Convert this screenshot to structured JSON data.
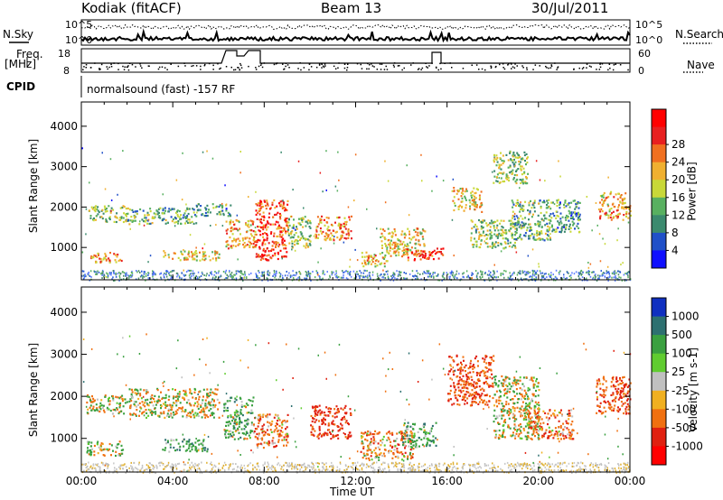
{
  "header": {
    "station": "Kodiak (fitACF)",
    "beam": "Beam 13",
    "date": "30/Jul/2011"
  },
  "summary": {
    "nsky_label": "N.Sky",
    "nsearch_label": "N.Search",
    "freq_label_top": "Freq.",
    "freq_label_unit": "[MHz]",
    "nave_label": "Nave",
    "cpid_label": "CPID",
    "cpid_text": "normalsound (fast) -157 RF",
    "noise_ticks": [
      "10^5",
      "10^0"
    ],
    "freq_ticks": [
      "18",
      "8"
    ],
    "nave_ticks": [
      "60",
      "0"
    ]
  },
  "chart_data": [
    {
      "type": "heatmap",
      "panel": "power",
      "ylabel": "Slant Range [km]",
      "xlabel": "Time UT",
      "x_ticks": [
        "00:00",
        "04:00",
        "08:00",
        "12:00",
        "16:00",
        "20:00",
        "00:00"
      ],
      "y_ticks": [
        1000,
        2000,
        3000,
        4000
      ],
      "ylim": [
        200,
        4600
      ],
      "xlim_hours": [
        0,
        24
      ],
      "colorbar": {
        "label": "Power [dB]",
        "ticks": [
          4,
          8,
          12,
          16,
          20,
          24,
          28
        ],
        "range": [
          0,
          32
        ],
        "colors": [
          "#1010ff",
          "#2050c8",
          "#3b8a6e",
          "#58b060",
          "#c8d838",
          "#f0b030",
          "#f07020",
          "#e82020",
          "#ff0000"
        ]
      },
      "echo_regions": [
        {
          "t": [
            0.3,
            2.0
          ],
          "r": [
            1650,
            2050
          ],
          "level": 14
        },
        {
          "t": [
            0.3,
            1.8
          ],
          "r": [
            650,
            900
          ],
          "level": 22
        },
        {
          "t": [
            2.0,
            5.0
          ],
          "r": [
            1600,
            2000
          ],
          "level": 12
        },
        {
          "t": [
            3.5,
            6.0
          ],
          "r": [
            700,
            950
          ],
          "level": 18
        },
        {
          "t": [
            5.0,
            6.5
          ],
          "r": [
            1800,
            2100
          ],
          "level": 10
        },
        {
          "t": [
            6.3,
            7.6
          ],
          "r": [
            1000,
            1700
          ],
          "level": 20
        },
        {
          "t": [
            7.6,
            9.0
          ],
          "r": [
            700,
            2200
          ],
          "level": 26
        },
        {
          "t": [
            9.0,
            10.0
          ],
          "r": [
            1000,
            1800
          ],
          "level": 14
        },
        {
          "t": [
            10.2,
            11.8
          ],
          "r": [
            1200,
            1800
          ],
          "level": 22
        },
        {
          "t": [
            12.2,
            13.4
          ],
          "r": [
            550,
            900
          ],
          "level": 20
        },
        {
          "t": [
            13.0,
            15.0
          ],
          "r": [
            800,
            1500
          ],
          "level": 18
        },
        {
          "t": [
            14.2,
            15.8
          ],
          "r": [
            700,
            1000
          ],
          "level": 26
        },
        {
          "t": [
            16.2,
            17.5
          ],
          "r": [
            1900,
            2500
          ],
          "level": 18
        },
        {
          "t": [
            17.0,
            19.0
          ],
          "r": [
            1000,
            1700
          ],
          "level": 14
        },
        {
          "t": [
            18.8,
            20.5
          ],
          "r": [
            1200,
            2200
          ],
          "level": 12
        },
        {
          "t": [
            18.0,
            19.5
          ],
          "r": [
            2600,
            3400
          ],
          "level": 14
        },
        {
          "t": [
            20.5,
            21.8
          ],
          "r": [
            1400,
            2200
          ],
          "level": 10
        },
        {
          "t": [
            22.6,
            24.0
          ],
          "r": [
            1700,
            2400
          ],
          "level": 20
        }
      ]
    },
    {
      "type": "heatmap",
      "panel": "velocity",
      "ylabel": "Slant Range [km]",
      "xlabel": "Time UT",
      "x_ticks": [
        "00:00",
        "04:00",
        "08:00",
        "12:00",
        "16:00",
        "20:00",
        "00:00"
      ],
      "y_ticks": [
        1000,
        2000,
        3000,
        4000
      ],
      "ylim": [
        200,
        4600
      ],
      "xlim_hours": [
        0,
        24
      ],
      "colorbar": {
        "label": "Velocity [m s-1]",
        "ticks": [
          1000,
          500,
          100,
          25,
          -25,
          -100,
          -500,
          -1000
        ],
        "colors": [
          "#1030c0",
          "#2d7070",
          "#3aa040",
          "#60cc30",
          "#c0c0c0",
          "#f0b020",
          "#f07010",
          "#e02010",
          "#ff0000"
        ]
      },
      "echo_regions": [
        {
          "t": [
            0.2,
            2.0
          ],
          "r": [
            1600,
            2050
          ],
          "value": 0
        },
        {
          "t": [
            0.2,
            1.8
          ],
          "r": [
            600,
            950
          ],
          "value": 0
        },
        {
          "t": [
            2.0,
            6.0
          ],
          "r": [
            1500,
            2200
          ],
          "value": 0
        },
        {
          "t": [
            3.5,
            5.5
          ],
          "r": [
            700,
            1000
          ],
          "value": 200
        },
        {
          "t": [
            6.2,
            7.5
          ],
          "r": [
            1000,
            2000
          ],
          "value": 150
        },
        {
          "t": [
            7.5,
            9.0
          ],
          "r": [
            800,
            1600
          ],
          "value": -200
        },
        {
          "t": [
            10.0,
            11.8
          ],
          "r": [
            1000,
            1800
          ],
          "value": -400
        },
        {
          "t": [
            12.2,
            14.5
          ],
          "r": [
            500,
            1200
          ],
          "value": -150
        },
        {
          "t": [
            14.0,
            15.5
          ],
          "r": [
            800,
            1400
          ],
          "value": 200
        },
        {
          "t": [
            16.0,
            18.0
          ],
          "r": [
            1800,
            3000
          ],
          "value": -300
        },
        {
          "t": [
            18.0,
            20.0
          ],
          "r": [
            1000,
            2500
          ],
          "value": 0
        },
        {
          "t": [
            19.5,
            21.5
          ],
          "r": [
            1000,
            1700
          ],
          "value": -200
        },
        {
          "t": [
            22.5,
            24.0
          ],
          "r": [
            1600,
            2500
          ],
          "value": -300
        }
      ]
    }
  ]
}
